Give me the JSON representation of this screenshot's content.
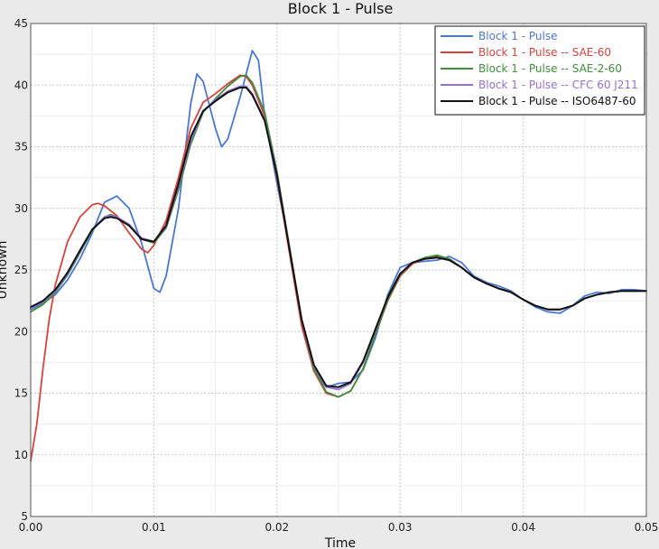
{
  "chart_data": {
    "type": "line",
    "title": "Block 1 - Pulse",
    "xlabel": "Time",
    "ylabel": "Unknown",
    "xlim": [
      0,
      0.05
    ],
    "ylim": [
      5,
      45
    ],
    "x_ticks": [
      "0.00",
      "0.01",
      "0.02",
      "0.03",
      "0.04",
      "0.05"
    ],
    "y_ticks": [
      "5",
      "10",
      "15",
      "20",
      "25",
      "30",
      "35",
      "40",
      "45"
    ],
    "grid": true,
    "minor_grid": true,
    "legend_position": "top-right",
    "series": [
      {
        "name": "Block 1 - Pulse",
        "color": "#4a78d8",
        "points": [
          [
            0.0,
            21.8
          ],
          [
            0.001,
            22.3
          ],
          [
            0.002,
            23.0
          ],
          [
            0.003,
            24.2
          ],
          [
            0.004,
            25.9
          ],
          [
            0.005,
            28.0
          ],
          [
            0.006,
            30.5
          ],
          [
            0.007,
            31.0
          ],
          [
            0.008,
            30.0
          ],
          [
            0.009,
            27.2
          ],
          [
            0.01,
            23.5
          ],
          [
            0.0105,
            23.2
          ],
          [
            0.011,
            24.5
          ],
          [
            0.012,
            30.0
          ],
          [
            0.013,
            38.5
          ],
          [
            0.0135,
            40.9
          ],
          [
            0.014,
            40.3
          ],
          [
            0.015,
            36.5
          ],
          [
            0.0155,
            35.0
          ],
          [
            0.016,
            35.6
          ],
          [
            0.017,
            39.0
          ],
          [
            0.018,
            42.8
          ],
          [
            0.0185,
            42.0
          ],
          [
            0.019,
            37.5
          ],
          [
            0.02,
            32.0
          ],
          [
            0.021,
            27.0
          ],
          [
            0.022,
            20.5
          ],
          [
            0.023,
            16.8
          ],
          [
            0.024,
            15.5
          ],
          [
            0.025,
            15.8
          ],
          [
            0.026,
            15.9
          ],
          [
            0.027,
            16.9
          ],
          [
            0.028,
            19.5
          ],
          [
            0.029,
            23.0
          ],
          [
            0.03,
            25.2
          ],
          [
            0.031,
            25.6
          ],
          [
            0.032,
            25.7
          ],
          [
            0.033,
            25.8
          ],
          [
            0.034,
            26.1
          ],
          [
            0.035,
            25.6
          ],
          [
            0.036,
            24.5
          ],
          [
            0.037,
            24.0
          ],
          [
            0.038,
            23.7
          ],
          [
            0.039,
            23.3
          ],
          [
            0.04,
            22.6
          ],
          [
            0.041,
            22.0
          ],
          [
            0.042,
            21.6
          ],
          [
            0.043,
            21.5
          ],
          [
            0.044,
            22.1
          ],
          [
            0.045,
            22.9
          ],
          [
            0.046,
            23.2
          ],
          [
            0.047,
            23.1
          ],
          [
            0.048,
            23.4
          ],
          [
            0.049,
            23.4
          ],
          [
            0.05,
            23.3
          ]
        ]
      },
      {
        "name": "Block 1 - Pulse -- SAE-60",
        "color": "#d8423c",
        "points": [
          [
            0.0,
            9.5
          ],
          [
            0.0005,
            12.5
          ],
          [
            0.001,
            17.0
          ],
          [
            0.0015,
            21.0
          ],
          [
            0.002,
            23.8
          ],
          [
            0.003,
            27.3
          ],
          [
            0.004,
            29.3
          ],
          [
            0.005,
            30.3
          ],
          [
            0.0055,
            30.4
          ],
          [
            0.006,
            30.2
          ],
          [
            0.007,
            29.4
          ],
          [
            0.008,
            28.0
          ],
          [
            0.009,
            26.7
          ],
          [
            0.0095,
            26.4
          ],
          [
            0.01,
            27.0
          ],
          [
            0.011,
            29.0
          ],
          [
            0.012,
            32.5
          ],
          [
            0.013,
            36.5
          ],
          [
            0.014,
            38.6
          ],
          [
            0.015,
            39.3
          ],
          [
            0.016,
            40.1
          ],
          [
            0.017,
            40.8
          ],
          [
            0.0175,
            40.7
          ],
          [
            0.018,
            40.0
          ],
          [
            0.019,
            37.5
          ],
          [
            0.02,
            32.5
          ],
          [
            0.021,
            26.5
          ],
          [
            0.022,
            20.5
          ],
          [
            0.023,
            16.8
          ],
          [
            0.024,
            15.0
          ],
          [
            0.025,
            14.7
          ],
          [
            0.026,
            15.2
          ],
          [
            0.027,
            17.0
          ],
          [
            0.028,
            19.8
          ],
          [
            0.029,
            22.5
          ],
          [
            0.03,
            24.5
          ],
          [
            0.031,
            25.5
          ],
          [
            0.032,
            25.9
          ],
          [
            0.033,
            26.1
          ],
          [
            0.034,
            25.9
          ],
          [
            0.035,
            25.2
          ],
          [
            0.036,
            24.4
          ],
          [
            0.037,
            23.9
          ],
          [
            0.038,
            23.5
          ],
          [
            0.039,
            23.2
          ],
          [
            0.04,
            22.6
          ],
          [
            0.041,
            22.1
          ],
          [
            0.042,
            21.8
          ],
          [
            0.043,
            21.8
          ],
          [
            0.044,
            22.1
          ],
          [
            0.045,
            22.7
          ],
          [
            0.046,
            23.0
          ],
          [
            0.047,
            23.2
          ],
          [
            0.048,
            23.3
          ],
          [
            0.049,
            23.3
          ],
          [
            0.05,
            23.3
          ]
        ]
      },
      {
        "name": "Block 1 - Pulse -- SAE-2-60",
        "color": "#3f8f3a",
        "points": [
          [
            0.0,
            21.6
          ],
          [
            0.001,
            22.2
          ],
          [
            0.002,
            23.2
          ],
          [
            0.003,
            24.6
          ],
          [
            0.004,
            26.4
          ],
          [
            0.005,
            28.2
          ],
          [
            0.006,
            29.3
          ],
          [
            0.0065,
            29.5
          ],
          [
            0.007,
            29.3
          ],
          [
            0.008,
            28.6
          ],
          [
            0.009,
            27.5
          ],
          [
            0.01,
            27.2
          ],
          [
            0.011,
            28.4
          ],
          [
            0.012,
            31.5
          ],
          [
            0.013,
            35.2
          ],
          [
            0.014,
            37.8
          ],
          [
            0.015,
            38.9
          ],
          [
            0.016,
            39.9
          ],
          [
            0.017,
            40.7
          ],
          [
            0.0175,
            40.8
          ],
          [
            0.018,
            40.2
          ],
          [
            0.019,
            37.8
          ],
          [
            0.02,
            33.0
          ],
          [
            0.021,
            27.0
          ],
          [
            0.022,
            21.0
          ],
          [
            0.023,
            17.0
          ],
          [
            0.024,
            15.1
          ],
          [
            0.025,
            14.7
          ],
          [
            0.026,
            15.2
          ],
          [
            0.027,
            17.0
          ],
          [
            0.028,
            19.8
          ],
          [
            0.029,
            22.6
          ],
          [
            0.03,
            24.6
          ],
          [
            0.031,
            25.6
          ],
          [
            0.032,
            26.0
          ],
          [
            0.033,
            26.2
          ],
          [
            0.034,
            25.9
          ],
          [
            0.035,
            25.2
          ],
          [
            0.036,
            24.4
          ],
          [
            0.037,
            23.9
          ],
          [
            0.038,
            23.5
          ],
          [
            0.039,
            23.2
          ],
          [
            0.04,
            22.6
          ],
          [
            0.041,
            22.1
          ],
          [
            0.042,
            21.8
          ],
          [
            0.043,
            21.8
          ],
          [
            0.044,
            22.1
          ],
          [
            0.045,
            22.7
          ],
          [
            0.046,
            23.0
          ],
          [
            0.047,
            23.2
          ],
          [
            0.048,
            23.3
          ],
          [
            0.049,
            23.3
          ],
          [
            0.05,
            23.3
          ]
        ]
      },
      {
        "name": "Block 1 - Pulse -- CFC 60 J211",
        "color": "#9470d8",
        "points": [
          [
            0.0,
            21.9
          ],
          [
            0.001,
            22.4
          ],
          [
            0.002,
            23.3
          ],
          [
            0.003,
            24.7
          ],
          [
            0.004,
            26.5
          ],
          [
            0.005,
            28.3
          ],
          [
            0.006,
            29.3
          ],
          [
            0.0065,
            29.4
          ],
          [
            0.007,
            29.3
          ],
          [
            0.008,
            28.7
          ],
          [
            0.009,
            27.6
          ],
          [
            0.01,
            27.3
          ],
          [
            0.011,
            28.5
          ],
          [
            0.012,
            31.8
          ],
          [
            0.013,
            35.5
          ],
          [
            0.014,
            37.9
          ],
          [
            0.015,
            38.8
          ],
          [
            0.016,
            39.5
          ],
          [
            0.017,
            39.9
          ],
          [
            0.0175,
            39.9
          ],
          [
            0.018,
            39.3
          ],
          [
            0.019,
            37.2
          ],
          [
            0.02,
            32.8
          ],
          [
            0.021,
            26.8
          ],
          [
            0.022,
            21.0
          ],
          [
            0.023,
            17.2
          ],
          [
            0.024,
            15.5
          ],
          [
            0.025,
            15.3
          ],
          [
            0.026,
            15.8
          ],
          [
            0.027,
            17.5
          ],
          [
            0.028,
            20.1
          ],
          [
            0.029,
            22.8
          ],
          [
            0.03,
            24.7
          ],
          [
            0.031,
            25.6
          ],
          [
            0.032,
            25.9
          ],
          [
            0.033,
            26.0
          ],
          [
            0.034,
            25.8
          ],
          [
            0.035,
            25.2
          ],
          [
            0.036,
            24.4
          ],
          [
            0.037,
            23.9
          ],
          [
            0.038,
            23.5
          ],
          [
            0.039,
            23.2
          ],
          [
            0.04,
            22.6
          ],
          [
            0.041,
            22.1
          ],
          [
            0.042,
            21.8
          ],
          [
            0.043,
            21.8
          ],
          [
            0.044,
            22.1
          ],
          [
            0.045,
            22.7
          ],
          [
            0.046,
            23.0
          ],
          [
            0.047,
            23.2
          ],
          [
            0.048,
            23.3
          ],
          [
            0.049,
            23.3
          ],
          [
            0.05,
            23.3
          ]
        ]
      },
      {
        "name": "Block 1 - Pulse -- ISO6487-60",
        "color": "#111111",
        "points": [
          [
            0.0,
            22.0
          ],
          [
            0.001,
            22.5
          ],
          [
            0.002,
            23.4
          ],
          [
            0.003,
            24.8
          ],
          [
            0.004,
            26.6
          ],
          [
            0.005,
            28.3
          ],
          [
            0.006,
            29.2
          ],
          [
            0.0065,
            29.3
          ],
          [
            0.007,
            29.2
          ],
          [
            0.008,
            28.6
          ],
          [
            0.009,
            27.5
          ],
          [
            0.01,
            27.3
          ],
          [
            0.011,
            28.6
          ],
          [
            0.012,
            32.0
          ],
          [
            0.013,
            35.8
          ],
          [
            0.014,
            37.9
          ],
          [
            0.015,
            38.7
          ],
          [
            0.016,
            39.4
          ],
          [
            0.017,
            39.8
          ],
          [
            0.0175,
            39.8
          ],
          [
            0.018,
            39.2
          ],
          [
            0.019,
            37.1
          ],
          [
            0.02,
            32.7
          ],
          [
            0.021,
            26.8
          ],
          [
            0.022,
            21.0
          ],
          [
            0.023,
            17.3
          ],
          [
            0.024,
            15.6
          ],
          [
            0.025,
            15.5
          ],
          [
            0.026,
            15.9
          ],
          [
            0.027,
            17.6
          ],
          [
            0.028,
            20.2
          ],
          [
            0.029,
            22.8
          ],
          [
            0.03,
            24.7
          ],
          [
            0.031,
            25.6
          ],
          [
            0.032,
            25.9
          ],
          [
            0.033,
            26.0
          ],
          [
            0.034,
            25.8
          ],
          [
            0.035,
            25.2
          ],
          [
            0.036,
            24.4
          ],
          [
            0.037,
            23.9
          ],
          [
            0.038,
            23.5
          ],
          [
            0.039,
            23.2
          ],
          [
            0.04,
            22.6
          ],
          [
            0.041,
            22.1
          ],
          [
            0.042,
            21.8
          ],
          [
            0.043,
            21.8
          ],
          [
            0.044,
            22.1
          ],
          [
            0.045,
            22.7
          ],
          [
            0.046,
            23.0
          ],
          [
            0.047,
            23.2
          ],
          [
            0.048,
            23.3
          ],
          [
            0.049,
            23.3
          ],
          [
            0.05,
            23.3
          ]
        ]
      }
    ]
  }
}
